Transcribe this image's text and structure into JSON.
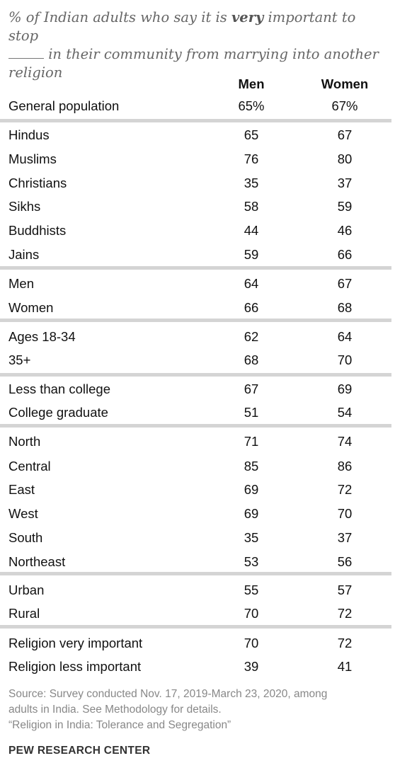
{
  "chart_data": {
    "type": "table",
    "title_parts": [
      "% of Indian adults who say it is ",
      "very",
      " important to stop ",
      " in their community from marrying into another religion"
    ],
    "columns": [
      "Men",
      "Women"
    ],
    "rows": [
      {
        "label": "General population",
        "men": "65%",
        "women": "67%"
      },
      {
        "label": "Hindus",
        "men": "65",
        "women": "67"
      },
      {
        "label": "Muslims",
        "men": "76",
        "women": "80"
      },
      {
        "label": "Christians",
        "men": "35",
        "women": "37"
      },
      {
        "label": "Sikhs",
        "men": "58",
        "women": "59"
      },
      {
        "label": "Buddhists",
        "men": "44",
        "women": "46"
      },
      {
        "label": "Jains",
        "men": "59",
        "women": "66"
      },
      {
        "label": "Men",
        "men": "64",
        "women": "67"
      },
      {
        "label": "Women",
        "men": "66",
        "women": "68"
      },
      {
        "label": "Ages 18-34",
        "men": "62",
        "women": "64"
      },
      {
        "label": "35+",
        "men": "68",
        "women": "70"
      },
      {
        "label": "Less than college",
        "men": "67",
        "women": "69"
      },
      {
        "label": "College graduate",
        "men": "51",
        "women": "54"
      },
      {
        "label": "North",
        "men": "71",
        "women": "74"
      },
      {
        "label": "Central",
        "men": "85",
        "women": "86"
      },
      {
        "label": "East",
        "men": "69",
        "women": "72"
      },
      {
        "label": "West",
        "men": "69",
        "women": "70"
      },
      {
        "label": "South",
        "men": "35",
        "women": "37"
      },
      {
        "label": "Northeast",
        "men": "53",
        "women": "56"
      },
      {
        "label": "Urban",
        "men": "55",
        "women": "57"
      },
      {
        "label": "Rural",
        "men": "70",
        "women": "72"
      },
      {
        "label": "Religion very important",
        "men": "70",
        "women": "72"
      },
      {
        "label": "Religion less important",
        "men": "39",
        "women": "41"
      }
    ],
    "groups_after_row": [
      0,
      6,
      8,
      10,
      12,
      18,
      20
    ]
  },
  "footer": {
    "source_lines": [
      "Source: Survey conducted Nov. 17, 2019-March 23, 2020, among",
      "adults in India. See Methodology for details.",
      "“Religion in India: Tolerance and Segregation”"
    ],
    "brand": "PEW RESEARCH CENTER"
  },
  "colors": {
    "separator": "#d4d4d4",
    "source_text": "#888888",
    "title_text": "#666666"
  }
}
